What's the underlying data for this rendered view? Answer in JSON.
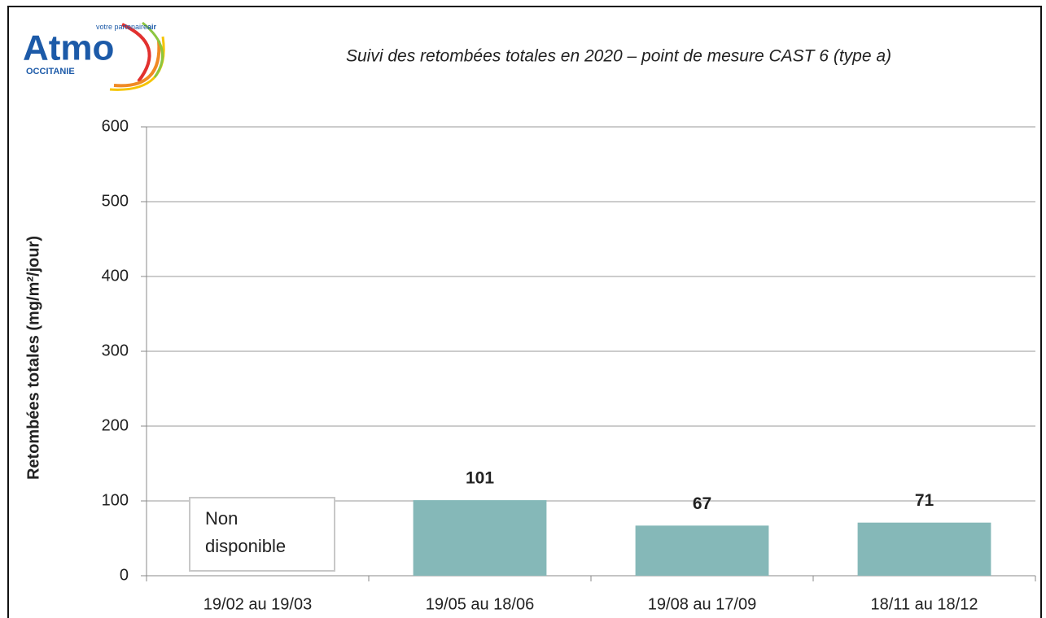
{
  "logo": {
    "name": "Atmo",
    "tagline": "votre partenaire",
    "tagline_bold": "air",
    "region": "OCCITANIE"
  },
  "chart_data": {
    "type": "bar",
    "title": "Suivi des retombées totales en 2020 – point de mesure CAST 6 (type a)",
    "y_label": "Retombées totales (mg/m²/jour)",
    "categories": [
      "19/02 au 19/03",
      "19/05 au 18/06",
      "19/08 au 17/09",
      "18/11 au 18/12"
    ],
    "values": [
      null,
      101,
      67,
      71
    ],
    "color": "#85b8b8",
    "ylim": [
      0,
      600
    ],
    "yticks": [
      0,
      100,
      200,
      300,
      400,
      500,
      600
    ],
    "grid": true,
    "annotation": "Non disponible"
  }
}
